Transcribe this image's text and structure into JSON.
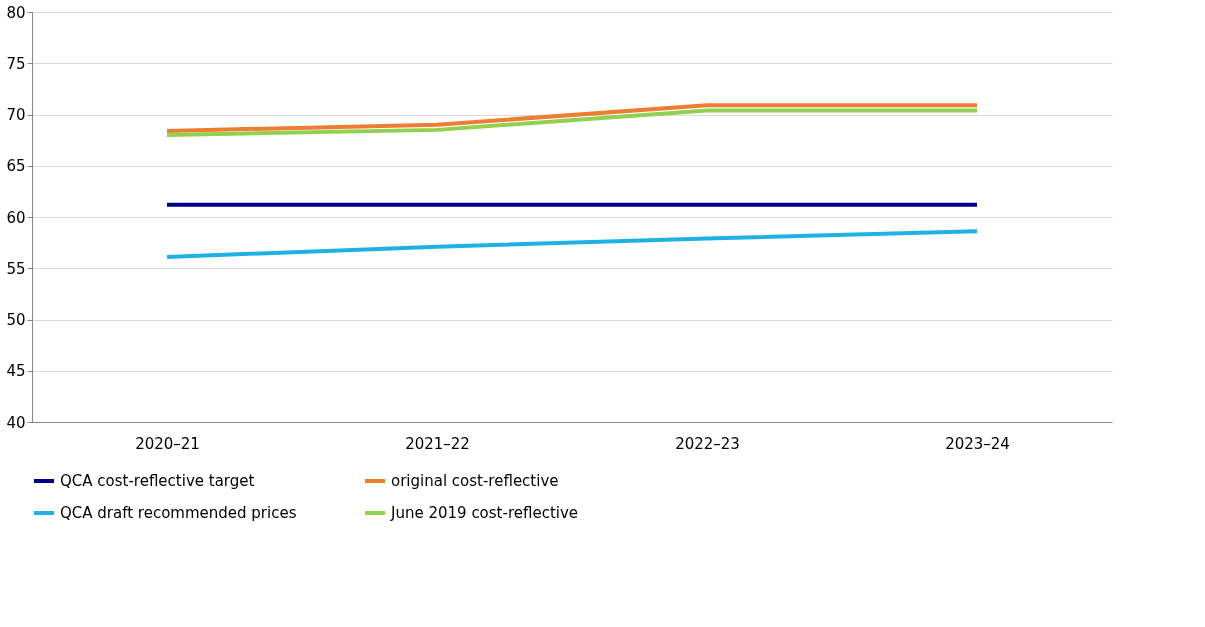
{
  "chart_data": {
    "type": "line",
    "categories": [
      "2020–21",
      "2021–22",
      "2022–23",
      "2023–24"
    ],
    "series": [
      {
        "name": "QCA cost-reflective target",
        "color": "#00008b",
        "values": [
          61.2,
          61.2,
          61.2,
          61.2
        ]
      },
      {
        "name": "original cost-reflective",
        "color": "#ed7d31",
        "values": [
          68.4,
          69.0,
          70.9,
          70.9
        ]
      },
      {
        "name": "QCA draft recommended prices",
        "color": "#1fb1e6",
        "values": [
          56.1,
          57.1,
          57.9,
          58.6
        ]
      },
      {
        "name": "June 2019 cost-reflective",
        "color": "#92d050",
        "values": [
          68.0,
          68.5,
          70.4,
          70.4
        ]
      }
    ],
    "ylim": [
      40,
      80
    ],
    "yticks": [
      40,
      45,
      50,
      55,
      60,
      65,
      70,
      75,
      80
    ],
    "grid": "y",
    "legend": "bottom",
    "marker": "none",
    "line_style": "solid"
  }
}
